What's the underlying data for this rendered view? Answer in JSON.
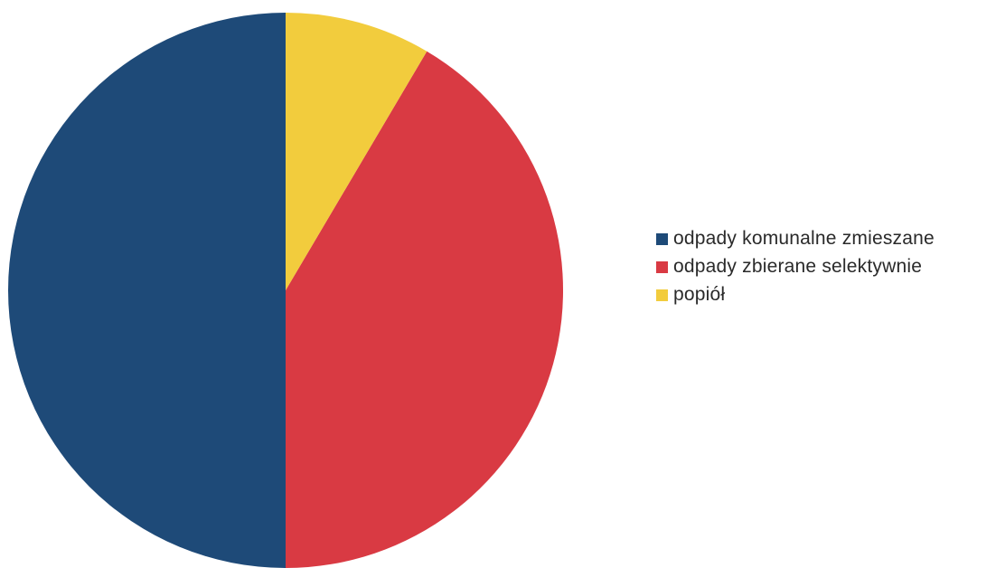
{
  "chart_data": {
    "type": "pie",
    "title": "",
    "legend_position": "right",
    "slices": [
      {
        "label": "odpady komunalne zmieszane",
        "value": 50.0,
        "color": "#1e4a78"
      },
      {
        "label": "odpady zbierane selektywnie",
        "value": 41.5,
        "color": "#d93a43"
      },
      {
        "label": "popiół",
        "value": 8.5,
        "color": "#f2cc3d"
      }
    ]
  }
}
